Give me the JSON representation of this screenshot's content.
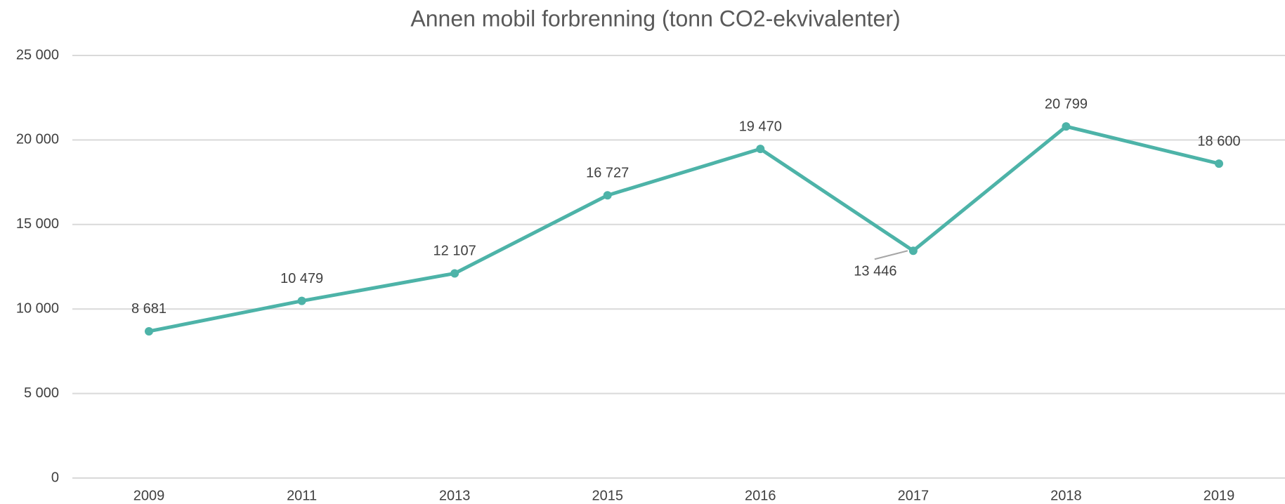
{
  "chart_data": {
    "type": "line",
    "title": "Annen mobil forbrenning (tonn CO2-ekvivalenter)",
    "categories": [
      "2009",
      "2011",
      "2013",
      "2015",
      "2016",
      "2017",
      "2018",
      "2019"
    ],
    "series": [
      {
        "name": "Annen mobil forbrenning",
        "color": "#4db3a8",
        "values": [
          8681,
          10479,
          12107,
          16727,
          19470,
          13446,
          20799,
          18600
        ],
        "value_labels": [
          "8 681",
          "10 479",
          "12 107",
          "16 727",
          "19 470",
          "13 446",
          "20 799",
          "18 600"
        ]
      }
    ],
    "ylim": [
      0,
      25000
    ],
    "yticks": [
      {
        "value": 0,
        "label": "0"
      },
      {
        "value": 5000,
        "label": "5 000"
      },
      {
        "value": 10000,
        "label": "10 000"
      },
      {
        "value": 15000,
        "label": "15 000"
      },
      {
        "value": 20000,
        "label": "20 000"
      },
      {
        "value": 25000,
        "label": "25 000"
      }
    ],
    "grid": true
  }
}
